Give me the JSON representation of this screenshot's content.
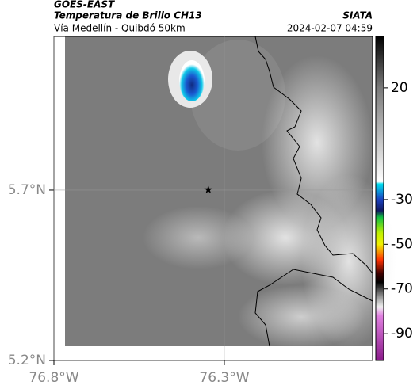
{
  "header": {
    "title": "GOES-EAST",
    "subtitle": "Temperatura de Brillo CH13",
    "source": "SIATA",
    "route": "Vía Medellín - Quibdó 50km",
    "timestamp": "2024-02-07 04:59"
  },
  "map": {
    "lon_range": [
      -76.8,
      -75.865
    ],
    "lat_range": [
      5.2,
      6.151
    ],
    "lat_ticks": [
      {
        "value": 5.7,
        "label": "5.7°N"
      },
      {
        "value": 5.2,
        "label": "5.2°N"
      }
    ],
    "lon_ticks": [
      {
        "value": -76.8,
        "label": "76.8°W"
      },
      {
        "value": -76.3,
        "label": "76.3°W"
      }
    ],
    "marker": {
      "lon": -76.347,
      "lat": 5.7
    }
  },
  "colorbar": {
    "range": [
      43,
      -102
    ],
    "ticks": [
      20,
      -30,
      -50,
      -70,
      -90
    ],
    "stops": [
      {
        "value": 43,
        "color": "#000000"
      },
      {
        "value": 20,
        "color": "#7a7a7a"
      },
      {
        "value": -22,
        "color": "#ffffff"
      },
      {
        "value": -23,
        "color": "#00e0f0"
      },
      {
        "value": -30,
        "color": "#1a40c0"
      },
      {
        "value": -35,
        "color": "#101860"
      },
      {
        "value": -38,
        "color": "#10c040"
      },
      {
        "value": -45,
        "color": "#c0f000"
      },
      {
        "value": -50,
        "color": "#f0f000"
      },
      {
        "value": -57,
        "color": "#ff3000"
      },
      {
        "value": -63,
        "color": "#400000"
      },
      {
        "value": -67,
        "color": "#000000"
      },
      {
        "value": -74,
        "color": "#a0a0a0"
      },
      {
        "value": -78,
        "color": "#f0f0f0"
      },
      {
        "value": -82,
        "color": "#e080e0"
      },
      {
        "value": -102,
        "color": "#8a1a8a"
      }
    ]
  }
}
